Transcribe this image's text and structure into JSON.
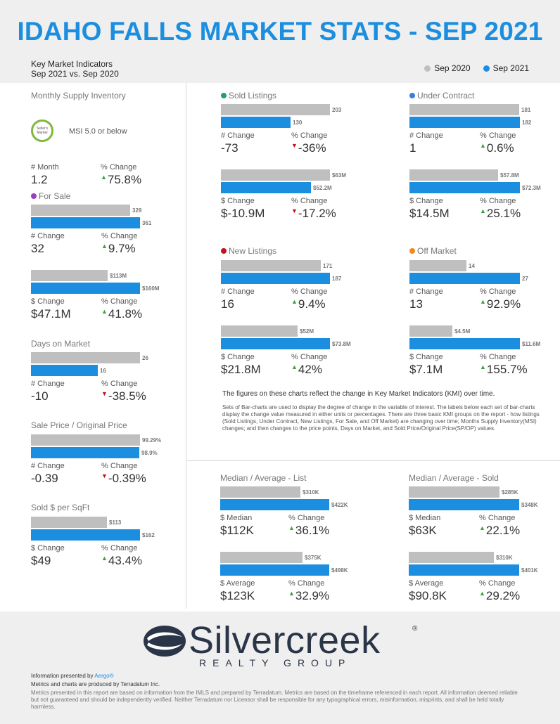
{
  "title": "IDAHO FALLS MARKET STATS - SEP 2021",
  "kmi": {
    "line1": "Key Market Indicators",
    "line2": "Sep 2021 vs. Sep 2020"
  },
  "legend": [
    {
      "label": "Sep 2020",
      "color": "#bfbfbf"
    },
    {
      "label": "Sep 2021",
      "color": "#1b8ee0"
    }
  ],
  "colors": {
    "gray": "#bfbfbf",
    "blue": "#1b8ee0",
    "up": "#3aa33a",
    "down": "#c0141c"
  },
  "msi": {
    "title": "Monthly Supply Inventory",
    "badge": "Seller's Market",
    "text": "MSI 5.0 or below",
    "lbl1": "# Month",
    "val1": "1.2",
    "lbl2": "% Change",
    "val2": "75.8%"
  },
  "sections": {
    "for_sale": {
      "title": "For Sale",
      "dot": "#9b3fbf"
    },
    "days": {
      "title": "Days on Market"
    },
    "spop": {
      "title": "Sale Price / Original Price"
    },
    "sqft": {
      "title": "Sold $ per SqFt"
    },
    "sold": {
      "title": "Sold Listings",
      "dot": "#1e9e7a"
    },
    "uc": {
      "title": "Under Contract",
      "dot": "#3b7de0"
    },
    "new": {
      "title": "New Listings",
      "dot": "#c0141c"
    },
    "off": {
      "title": "Off Market",
      "dot": "#f08a1c"
    },
    "mlist": {
      "title": "Median / Average - List"
    },
    "msold": {
      "title": "Median / Average - Sold"
    }
  },
  "blocks": {
    "fs1": {
      "a": "329",
      "b": "361",
      "fa": 0.911,
      "fb": 1.0,
      "l1": "# Change",
      "v1": "32",
      "l2": "% Change",
      "v2": "9.7%",
      "dir": "up"
    },
    "fs2": {
      "a": "$113M",
      "b": "$160M",
      "fa": 0.706,
      "fb": 1.0,
      "l1": "$ Change",
      "v1": "$47.1M",
      "l2": "% Change",
      "v2": "41.8%",
      "dir": "up"
    },
    "dom": {
      "a": "26",
      "b": "16",
      "fa": 1.0,
      "fb": 0.615,
      "l1": "# Change",
      "v1": "-10",
      "l2": "% Change",
      "v2": "-38.5%",
      "dir": "down"
    },
    "sp": {
      "a": "99.29%",
      "b": "98.9%",
      "fa": 1.0,
      "fb": 0.996,
      "l1": "# Change",
      "v1": "-0.39",
      "l2": "% Change",
      "v2": "-0.39%",
      "dir": "down"
    },
    "sq": {
      "a": "$113",
      "b": "$162",
      "fa": 0.698,
      "fb": 1.0,
      "l1": "$ Change",
      "v1": "$49",
      "l2": "% Change",
      "v2": "43.4%",
      "dir": "up"
    },
    "so1": {
      "a": "203",
      "b": "130",
      "fa": 1.0,
      "fb": 0.64,
      "l1": "# Change",
      "v1": "-73",
      "l2": "% Change",
      "v2": "-36%",
      "dir": "down"
    },
    "so2": {
      "a": "$63M",
      "b": "$52.2M",
      "fa": 1.0,
      "fb": 0.829,
      "l1": "$ Change",
      "v1": "$-10.9M",
      "l2": "% Change",
      "v2": "-17.2%",
      "dir": "down"
    },
    "uc1": {
      "a": "181",
      "b": "182",
      "fa": 0.995,
      "fb": 1.0,
      "l1": "# Change",
      "v1": "1",
      "l2": "% Change",
      "v2": "0.6%",
      "dir": "up"
    },
    "uc2": {
      "a": "$57.8M",
      "b": "$72.3M",
      "fa": 0.8,
      "fb": 1.0,
      "l1": "$ Change",
      "v1": "$14.5M",
      "l2": "% Change",
      "v2": "25.1%",
      "dir": "up"
    },
    "nl1": {
      "a": "171",
      "b": "187",
      "fa": 0.914,
      "fb": 1.0,
      "l1": "# Change",
      "v1": "16",
      "l2": "% Change",
      "v2": "9.4%",
      "dir": "up"
    },
    "nl2": {
      "a": "$52M",
      "b": "$73.8M",
      "fa": 0.705,
      "fb": 1.0,
      "l1": "$ Change",
      "v1": "$21.8M",
      "l2": "% Change",
      "v2": "42%",
      "dir": "up"
    },
    "om1": {
      "a": "14",
      "b": "27",
      "fa": 0.519,
      "fb": 1.0,
      "l1": "# Change",
      "v1": "13",
      "l2": "% Change",
      "v2": "92.9%",
      "dir": "up"
    },
    "om2": {
      "a": "$4.5M",
      "b": "$11.6M",
      "fa": 0.388,
      "fb": 1.0,
      "l1": "$ Change",
      "v1": "$7.1M",
      "l2": "% Change",
      "v2": "155.7%",
      "dir": "up"
    },
    "ml1": {
      "a": "$310K",
      "b": "$422K",
      "fa": 0.735,
      "fb": 1.0,
      "l1": "$ Median",
      "v1": "$112K",
      "l2": "% Change",
      "v2": "36.1%",
      "dir": "up"
    },
    "ml2": {
      "a": "$375K",
      "b": "$498K",
      "fa": 0.753,
      "fb": 1.0,
      "l1": "$ Average",
      "v1": "$123K",
      "l2": "% Change",
      "v2": "32.9%",
      "dir": "up"
    },
    "ms1": {
      "a": "$285K",
      "b": "$348K",
      "fa": 0.819,
      "fb": 1.0,
      "l1": "$ Median",
      "v1": "$63K",
      "l2": "% Change",
      "v2": "22.1%",
      "dir": "up"
    },
    "ms2": {
      "a": "$310K",
      "b": "$401K",
      "fa": 0.773,
      "fb": 1.0,
      "l1": "$ Average",
      "v1": "$90.8K",
      "l2": "% Change",
      "v2": "29.2%",
      "dir": "up"
    }
  },
  "notes": {
    "bold": "The figures on these charts reflect the change in Key Market Indicators (KMI) over time.",
    "body": "Sets of Bar-charts are used to display the degree of change in the variable of interest. The labels below each set of bar-charts display the change value measured in either units or percentages. There are three basic KMI groups on the report - how listings (Sold Listings, Under Contract, New Listings, For Sale, and Off Market) are changing over time; Months Supply Inventory(MSI) changes; and then changes to the price points, Days on Market, and Sold Price/Original Price(SP/OP) values."
  },
  "logo": {
    "name": "Silvercreek",
    "reg": "®",
    "sub": "REALTY GROUP"
  },
  "footer": {
    "presented": "Information presented by ",
    "aergo": "Aergo®",
    "metrics": "Metrics and charts are produced by Terradatum Inc.",
    "disclaimer": "Metrics presented in this report are based on information from the IMLS and prepared by Terradatum. Metrics are based on the timeframe referenced in each report. All information deemed reliable but not guaranteed and should be independently verified. Neither Terradatum nor Licensor shall be responsible for any typographical errors, misinformation, misprints, and shall be held totally harmless."
  }
}
